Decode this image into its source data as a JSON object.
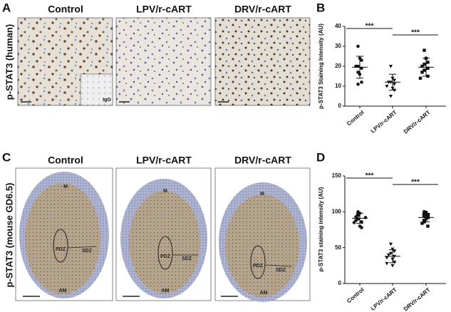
{
  "panel_labels": [
    "A",
    "B",
    "C",
    "D"
  ],
  "panel_a": {
    "columns": [
      "Control",
      "LPV/r-cART",
      "DRV/r-cART"
    ],
    "row_label": "p-STAT3 (human)",
    "inset_label": "IgG"
  },
  "panel_c": {
    "columns": [
      "Control",
      "LPV/r-cART",
      "DRV/r-cART"
    ],
    "row_label": "p-STAT3 (mouse GD6.5)",
    "region_labels": [
      "M",
      "PDZ",
      "SDZ",
      "AM"
    ]
  },
  "chart_data": [
    {
      "type": "scatter",
      "ylabel": "p-STAT3 Staining Intensity (AU)",
      "categories": [
        "Control",
        "LPV/r-cART",
        "DRV/r-cART"
      ],
      "markers": [
        "circle",
        "triangle",
        "square"
      ],
      "points": [
        [
          30,
          24,
          23,
          20,
          20,
          19,
          17,
          16,
          12,
          11
        ],
        [
          20,
          14,
          13,
          12,
          12,
          11,
          10,
          9,
          8,
          5
        ],
        [
          28,
          24,
          22,
          21,
          20,
          19,
          18,
          17,
          15,
          14
        ]
      ],
      "means": [
        19.5,
        12,
        19.5
      ],
      "errors": [
        5.5,
        4,
        4.5
      ],
      "ylim": [
        0,
        40
      ],
      "yticks": [
        0,
        10,
        20,
        30,
        40
      ],
      "annotations": [
        "***",
        "***"
      ]
    },
    {
      "type": "scatter",
      "ylabel": "p-STAT3 staining intensity (AU)",
      "categories": [
        "Control",
        "LPV/r-cART",
        "DRV/r-cART"
      ],
      "markers": [
        "circle",
        "triangle",
        "square"
      ],
      "points": [
        [
          100,
          98,
          96,
          95,
          93,
          92,
          90,
          88,
          86,
          85,
          80,
          78
        ],
        [
          55,
          48,
          45,
          42,
          40,
          38,
          36,
          34,
          30,
          28,
          25
        ],
        [
          100,
          99,
          97,
          96,
          95,
          94,
          92,
          90,
          88,
          86,
          84,
          80
        ]
      ],
      "means": [
        91,
        38,
        92
      ],
      "errors": [
        7,
        9,
        6
      ],
      "ylim": [
        0,
        150
      ],
      "yticks": [
        0,
        50,
        100,
        150
      ],
      "annotations": [
        "***",
        "***"
      ]
    }
  ]
}
